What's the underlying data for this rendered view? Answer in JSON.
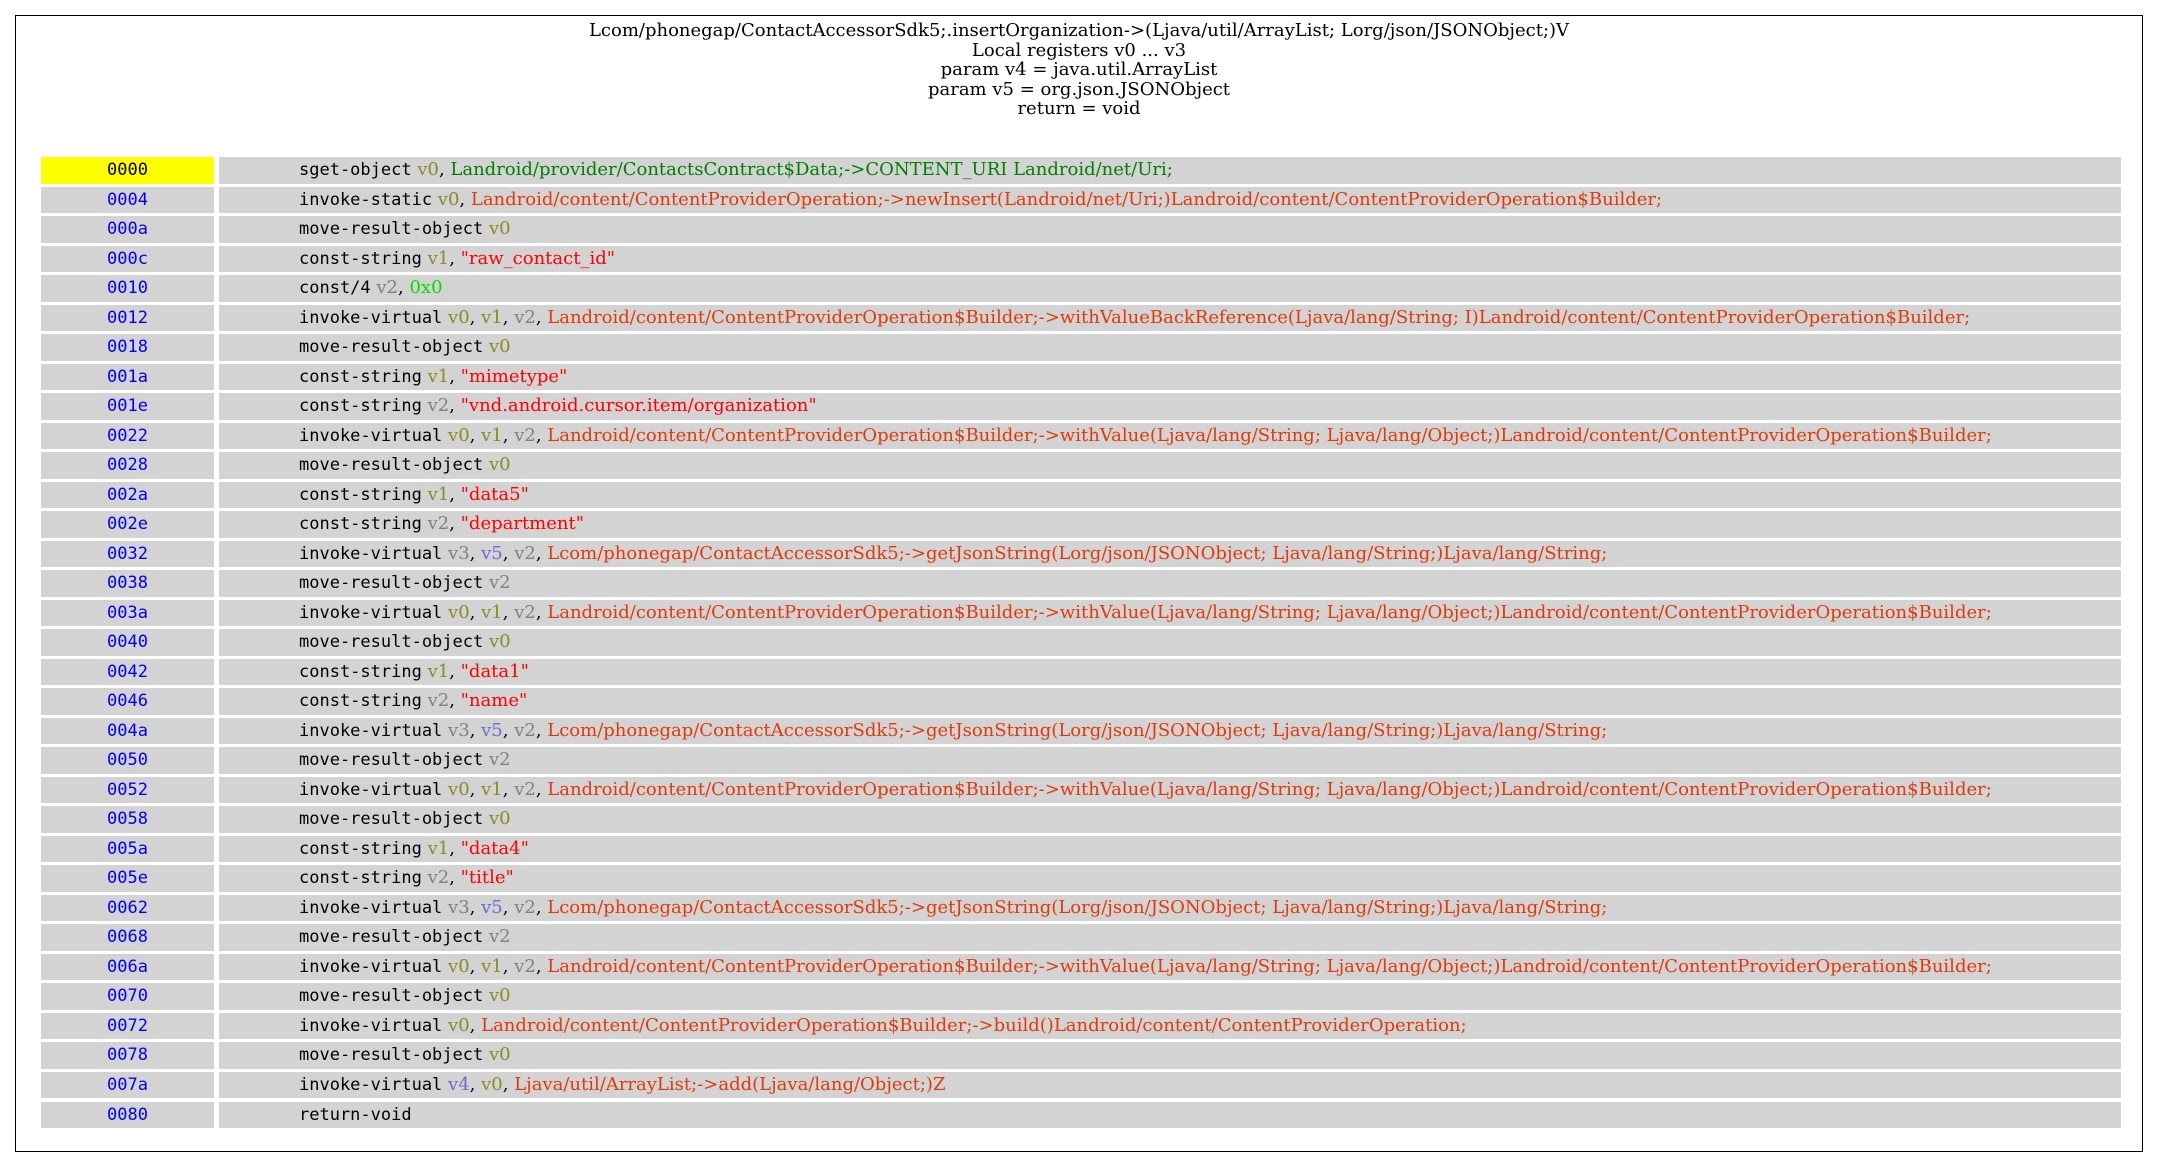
{
  "header": {
    "lines": [
      "Lcom/phonegap/ContactAccessorSdk5;.insertOrganization->(Ljava/util/ArrayList; Lorg/json/JSONObject;)V",
      "Local registers v0 ... v3",
      "param v4 = java.util.ArrayList",
      "param v5 = org.json.JSONObject",
      "return = void"
    ]
  },
  "colors": {
    "first_addr_bg": "#ffff00",
    "row_bg": "#d3d3d3",
    "addr_text": "#0000ff",
    "reg_local": "#8b8b23",
    "reg_v2": "#808080",
    "reg_param": "#6b6bcf",
    "method_ref": "#e03a0a",
    "field_ref": "#008000",
    "string_lit": "#ff0000",
    "int_lit": "#00e000"
  },
  "instructions": [
    {
      "addr": "0000",
      "op": "sget-object",
      "args": [
        {
          "t": "v0",
          "c": "reg_local"
        },
        {
          "t": "Landroid/provider/ContactsContract$Data;->CONTENT_URI Landroid/net/Uri;",
          "c": "field_ref"
        }
      ]
    },
    {
      "addr": "0004",
      "op": "invoke-static",
      "args": [
        {
          "t": "v0",
          "c": "reg_local"
        },
        {
          "t": "Landroid/content/ContentProviderOperation;->newInsert(Landroid/net/Uri;)Landroid/content/ContentProviderOperation$Builder;",
          "c": "method_ref"
        }
      ]
    },
    {
      "addr": "000a",
      "op": "move-result-object",
      "args": [
        {
          "t": "v0",
          "c": "reg_local"
        }
      ]
    },
    {
      "addr": "000c",
      "op": "const-string",
      "args": [
        {
          "t": "v1",
          "c": "reg_local"
        },
        {
          "t": "\"raw_contact_id\"",
          "c": "string_lit"
        }
      ]
    },
    {
      "addr": "0010",
      "op": "const/4",
      "args": [
        {
          "t": "v2",
          "c": "reg_v2"
        },
        {
          "t": "0x0",
          "c": "int_lit"
        }
      ]
    },
    {
      "addr": "0012",
      "op": "invoke-virtual",
      "args": [
        {
          "t": "v0",
          "c": "reg_local"
        },
        {
          "t": "v1",
          "c": "reg_local"
        },
        {
          "t": "v2",
          "c": "reg_v2"
        },
        {
          "t": "Landroid/content/ContentProviderOperation$Builder;->withValueBackReference(Ljava/lang/String; I)Landroid/content/ContentProviderOperation$Builder;",
          "c": "method_ref"
        }
      ]
    },
    {
      "addr": "0018",
      "op": "move-result-object",
      "args": [
        {
          "t": "v0",
          "c": "reg_local"
        }
      ]
    },
    {
      "addr": "001a",
      "op": "const-string",
      "args": [
        {
          "t": "v1",
          "c": "reg_local"
        },
        {
          "t": "\"mimetype\"",
          "c": "string_lit"
        }
      ]
    },
    {
      "addr": "001e",
      "op": "const-string",
      "args": [
        {
          "t": "v2",
          "c": "reg_v2"
        },
        {
          "t": "\"vnd.android.cursor.item/organization\"",
          "c": "string_lit"
        }
      ]
    },
    {
      "addr": "0022",
      "op": "invoke-virtual",
      "args": [
        {
          "t": "v0",
          "c": "reg_local"
        },
        {
          "t": "v1",
          "c": "reg_local"
        },
        {
          "t": "v2",
          "c": "reg_v2"
        },
        {
          "t": "Landroid/content/ContentProviderOperation$Builder;->withValue(Ljava/lang/String; Ljava/lang/Object;)Landroid/content/ContentProviderOperation$Builder;",
          "c": "method_ref"
        }
      ]
    },
    {
      "addr": "0028",
      "op": "move-result-object",
      "args": [
        {
          "t": "v0",
          "c": "reg_local"
        }
      ]
    },
    {
      "addr": "002a",
      "op": "const-string",
      "args": [
        {
          "t": "v1",
          "c": "reg_local"
        },
        {
          "t": "\"data5\"",
          "c": "string_lit"
        }
      ]
    },
    {
      "addr": "002e",
      "op": "const-string",
      "args": [
        {
          "t": "v2",
          "c": "reg_v2"
        },
        {
          "t": "\"department\"",
          "c": "string_lit"
        }
      ]
    },
    {
      "addr": "0032",
      "op": "invoke-virtual",
      "args": [
        {
          "t": "v3",
          "c": "reg_v2"
        },
        {
          "t": "v5",
          "c": "reg_param"
        },
        {
          "t": "v2",
          "c": "reg_v2"
        },
        {
          "t": "Lcom/phonegap/ContactAccessorSdk5;->getJsonString(Lorg/json/JSONObject; Ljava/lang/String;)Ljava/lang/String;",
          "c": "method_ref"
        }
      ]
    },
    {
      "addr": "0038",
      "op": "move-result-object",
      "args": [
        {
          "t": "v2",
          "c": "reg_v2"
        }
      ]
    },
    {
      "addr": "003a",
      "op": "invoke-virtual",
      "args": [
        {
          "t": "v0",
          "c": "reg_local"
        },
        {
          "t": "v1",
          "c": "reg_local"
        },
        {
          "t": "v2",
          "c": "reg_v2"
        },
        {
          "t": "Landroid/content/ContentProviderOperation$Builder;->withValue(Ljava/lang/String; Ljava/lang/Object;)Landroid/content/ContentProviderOperation$Builder;",
          "c": "method_ref"
        }
      ]
    },
    {
      "addr": "0040",
      "op": "move-result-object",
      "args": [
        {
          "t": "v0",
          "c": "reg_local"
        }
      ]
    },
    {
      "addr": "0042",
      "op": "const-string",
      "args": [
        {
          "t": "v1",
          "c": "reg_local"
        },
        {
          "t": "\"data1\"",
          "c": "string_lit"
        }
      ]
    },
    {
      "addr": "0046",
      "op": "const-string",
      "args": [
        {
          "t": "v2",
          "c": "reg_v2"
        },
        {
          "t": "\"name\"",
          "c": "string_lit"
        }
      ]
    },
    {
      "addr": "004a",
      "op": "invoke-virtual",
      "args": [
        {
          "t": "v3",
          "c": "reg_v2"
        },
        {
          "t": "v5",
          "c": "reg_param"
        },
        {
          "t": "v2",
          "c": "reg_v2"
        },
        {
          "t": "Lcom/phonegap/ContactAccessorSdk5;->getJsonString(Lorg/json/JSONObject; Ljava/lang/String;)Ljava/lang/String;",
          "c": "method_ref"
        }
      ]
    },
    {
      "addr": "0050",
      "op": "move-result-object",
      "args": [
        {
          "t": "v2",
          "c": "reg_v2"
        }
      ]
    },
    {
      "addr": "0052",
      "op": "invoke-virtual",
      "args": [
        {
          "t": "v0",
          "c": "reg_local"
        },
        {
          "t": "v1",
          "c": "reg_local"
        },
        {
          "t": "v2",
          "c": "reg_v2"
        },
        {
          "t": "Landroid/content/ContentProviderOperation$Builder;->withValue(Ljava/lang/String; Ljava/lang/Object;)Landroid/content/ContentProviderOperation$Builder;",
          "c": "method_ref"
        }
      ]
    },
    {
      "addr": "0058",
      "op": "move-result-object",
      "args": [
        {
          "t": "v0",
          "c": "reg_local"
        }
      ]
    },
    {
      "addr": "005a",
      "op": "const-string",
      "args": [
        {
          "t": "v1",
          "c": "reg_local"
        },
        {
          "t": "\"data4\"",
          "c": "string_lit"
        }
      ]
    },
    {
      "addr": "005e",
      "op": "const-string",
      "args": [
        {
          "t": "v2",
          "c": "reg_v2"
        },
        {
          "t": "\"title\"",
          "c": "string_lit"
        }
      ]
    },
    {
      "addr": "0062",
      "op": "invoke-virtual",
      "args": [
        {
          "t": "v3",
          "c": "reg_v2"
        },
        {
          "t": "v5",
          "c": "reg_param"
        },
        {
          "t": "v2",
          "c": "reg_v2"
        },
        {
          "t": "Lcom/phonegap/ContactAccessorSdk5;->getJsonString(Lorg/json/JSONObject; Ljava/lang/String;)Ljava/lang/String;",
          "c": "method_ref"
        }
      ]
    },
    {
      "addr": "0068",
      "op": "move-result-object",
      "args": [
        {
          "t": "v2",
          "c": "reg_v2"
        }
      ]
    },
    {
      "addr": "006a",
      "op": "invoke-virtual",
      "args": [
        {
          "t": "v0",
          "c": "reg_local"
        },
        {
          "t": "v1",
          "c": "reg_local"
        },
        {
          "t": "v2",
          "c": "reg_v2"
        },
        {
          "t": "Landroid/content/ContentProviderOperation$Builder;->withValue(Ljava/lang/String; Ljava/lang/Object;)Landroid/content/ContentProviderOperation$Builder;",
          "c": "method_ref"
        }
      ]
    },
    {
      "addr": "0070",
      "op": "move-result-object",
      "args": [
        {
          "t": "v0",
          "c": "reg_local"
        }
      ]
    },
    {
      "addr": "0072",
      "op": "invoke-virtual",
      "args": [
        {
          "t": "v0",
          "c": "reg_local"
        },
        {
          "t": "Landroid/content/ContentProviderOperation$Builder;->build()Landroid/content/ContentProviderOperation;",
          "c": "method_ref"
        }
      ]
    },
    {
      "addr": "0078",
      "op": "move-result-object",
      "args": [
        {
          "t": "v0",
          "c": "reg_local"
        }
      ]
    },
    {
      "addr": "007a",
      "op": "invoke-virtual",
      "args": [
        {
          "t": "v4",
          "c": "reg_param"
        },
        {
          "t": "v0",
          "c": "reg_local"
        },
        {
          "t": "Ljava/util/ArrayList;->add(Ljava/lang/Object;)Z",
          "c": "method_ref"
        }
      ]
    },
    {
      "addr": "0080",
      "op": "return-void",
      "args": []
    }
  ]
}
